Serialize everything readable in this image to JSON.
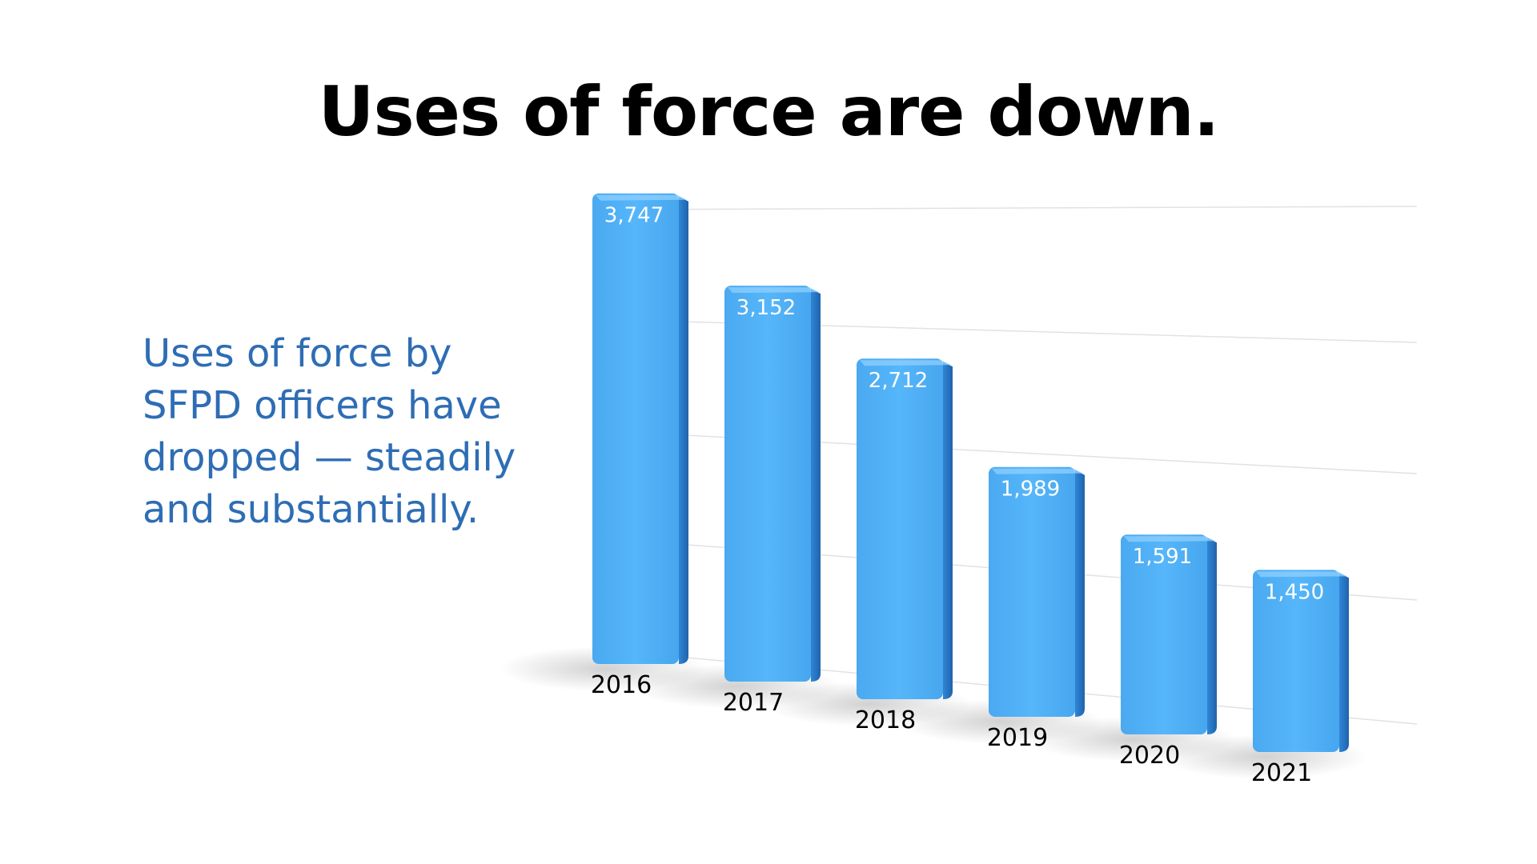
{
  "slide": {
    "title": "Uses of force are down.",
    "subtitle": "Uses of force by SFPD officers have dropped — steadily and substantially."
  },
  "colors": {
    "title": "#000000",
    "subtitle": "#2e6db4",
    "bar_front": "#4fb0f5",
    "bar_side": "#2b7fd0",
    "bar_top": "#8fd0ff",
    "value_label": "#ffffff",
    "category_label": "#000000"
  },
  "chart_data": {
    "type": "bar",
    "style": "3d-perspective",
    "categories": [
      "2016",
      "2017",
      "2018",
      "2019",
      "2020",
      "2021"
    ],
    "values": [
      3747,
      3152,
      2712,
      1989,
      1591,
      1450
    ],
    "value_labels": [
      "3,747",
      "3,152",
      "2,712",
      "1,989",
      "1,591",
      "1,450"
    ],
    "title": "",
    "xlabel": "",
    "ylabel": "",
    "ylim": [
      0,
      4000
    ],
    "grid": true,
    "legend": "none"
  }
}
